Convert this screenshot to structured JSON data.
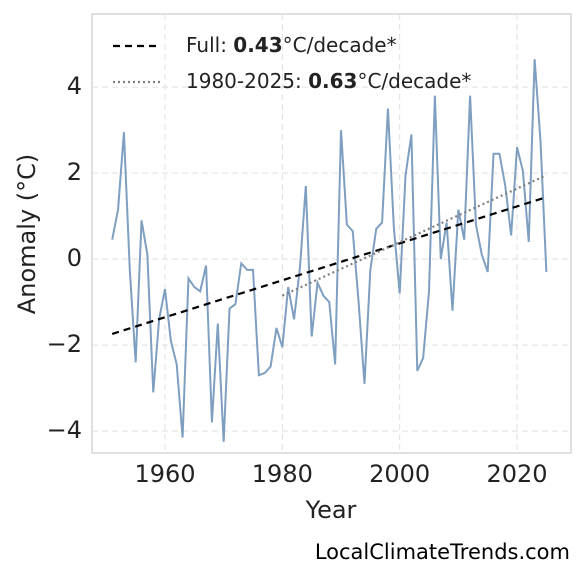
{
  "chart_data": {
    "type": "line",
    "x_label": "Year",
    "y_label": "Anomaly (°C)",
    "watermark": "LocalClimateTrends.com",
    "xlim": [
      1947.56,
      2029.2
    ],
    "ylim": [
      -4.51,
      5.7
    ],
    "xticks": [
      1960,
      1980,
      2000,
      2020
    ],
    "yticks": [
      {
        "value": -4,
        "label": "−4"
      },
      {
        "value": -2,
        "label": "−2"
      },
      0,
      2,
      4
    ],
    "grid": true,
    "legend": "upper left",
    "series": [
      {
        "color": "#7f9fc1",
        "x": [
          1951,
          1952,
          1953,
          1954,
          1955,
          1956,
          1957,
          1958,
          1959,
          1960,
          1961,
          1962,
          1963,
          1964,
          1965,
          1966,
          1967,
          1968,
          1969,
          1970,
          1971,
          1972,
          1973,
          1974,
          1975,
          1976,
          1977,
          1978,
          1979,
          1980,
          1981,
          1982,
          1983,
          1984,
          1985,
          1986,
          1987,
          1988,
          1989,
          1990,
          1991,
          1992,
          1993,
          1994,
          1995,
          1996,
          1997,
          1998,
          1999,
          2000,
          2001,
          2002,
          2003,
          2004,
          2005,
          2006,
          2007,
          2008,
          2009,
          2010,
          2011,
          2012,
          2013,
          2014,
          2015,
          2016,
          2017,
          2018,
          2019,
          2020,
          2021,
          2022,
          2023,
          2024,
          2025
        ],
        "values": [
          0.45,
          1.15,
          2.95,
          -0.25,
          -2.4,
          0.9,
          0.1,
          -3.1,
          -1.4,
          -0.7,
          -1.9,
          -2.45,
          -4.15,
          -0.45,
          -0.65,
          -0.75,
          -0.15,
          -3.8,
          -1.5,
          -4.25,
          -1.15,
          -1.05,
          -0.1,
          -0.25,
          -0.25,
          -2.7,
          -2.65,
          -2.5,
          -1.6,
          -2.05,
          -0.65,
          -1.4,
          -0.2,
          1.7,
          -1.8,
          -0.55,
          -0.85,
          -1.0,
          -2.45,
          3.0,
          0.8,
          0.65,
          -1.0,
          -2.9,
          -0.25,
          0.7,
          0.85,
          3.5,
          0.75,
          -0.8,
          1.95,
          2.9,
          -2.6,
          -2.3,
          -0.75,
          3.8,
          0.0,
          0.85,
          -1.2,
          1.15,
          0.45,
          3.8,
          0.8,
          0.1,
          -0.3,
          2.45,
          2.45,
          1.7,
          0.55,
          2.6,
          2.05,
          0.4,
          4.65,
          2.75,
          -0.3
        ]
      },
      {
        "name": "Full: 0.43°C/decade*",
        "color": "#000000",
        "dash": "7,5",
        "x": [
          1951,
          2025
        ],
        "values": [
          -1.74,
          1.44
        ]
      },
      {
        "name": "1980-2025: 0.63°C/decade*",
        "color": "#808080",
        "dash": "2,3",
        "x": [
          1980,
          2025
        ],
        "values": [
          -0.85,
          1.95
        ]
      }
    ]
  }
}
